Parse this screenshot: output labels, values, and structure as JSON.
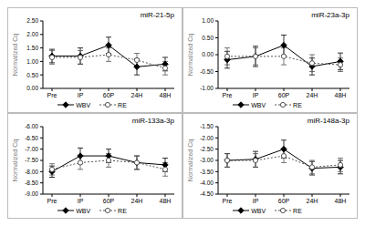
{
  "chart_data": [
    {
      "type": "line",
      "title": "miR-21-5p",
      "y_label": "Normalized Cq",
      "categories": [
        "Pre",
        "IP",
        "60P",
        "24H",
        "48H"
      ],
      "series": [
        {
          "name": "WBV",
          "color": "#000000",
          "marker": "diamond",
          "line_style": "solid",
          "values": [
            1.2,
            1.2,
            1.6,
            0.8,
            0.9
          ],
          "errors": [
            0.25,
            0.3,
            0.3,
            0.3,
            0.25
          ]
        },
        {
          "name": "RE",
          "color": "#555555",
          "marker": "circle",
          "line_style": "dotted",
          "values": [
            1.15,
            1.15,
            1.25,
            1.05,
            0.75
          ],
          "errors": [
            0.25,
            0.25,
            0.25,
            0.25,
            0.25
          ]
        }
      ],
      "ylim": [
        0,
        2.5
      ],
      "yticks": [
        {
          "value": 0,
          "label": "0.00"
        },
        {
          "value": 0.5,
          "label": "0.50"
        },
        {
          "value": 1,
          "label": "1.00"
        },
        {
          "value": 1.5,
          "label": "1.50"
        },
        {
          "value": 2,
          "label": "2.00"
        },
        {
          "value": 2.5,
          "label": "2.50"
        }
      ],
      "legend": "bottom"
    },
    {
      "type": "line",
      "title": "miR-23a-3p",
      "y_label": "Normalized Cq",
      "categories": [
        "Pre",
        "IP",
        "60P",
        "24H",
        "48H"
      ],
      "series": [
        {
          "name": "WBV",
          "color": "#000000",
          "marker": "diamond",
          "line_style": "solid",
          "values": [
            -0.15,
            -0.05,
            0.28,
            -0.35,
            -0.2
          ],
          "errors": [
            0.25,
            0.3,
            0.3,
            0.25,
            0.25
          ]
        },
        {
          "name": "RE",
          "color": "#555555",
          "marker": "circle",
          "line_style": "dotted",
          "values": [
            -0.05,
            -0.05,
            -0.05,
            -0.25,
            -0.3
          ],
          "errors": [
            0.25,
            0.25,
            0.25,
            0.25,
            0.2
          ]
        }
      ],
      "ylim": [
        -1,
        1
      ],
      "yticks": [
        {
          "value": -1,
          "label": "-1.00"
        },
        {
          "value": -0.5,
          "label": "-0.50"
        },
        {
          "value": 0,
          "label": "0.00"
        },
        {
          "value": 0.5,
          "label": "0.50"
        },
        {
          "value": 1,
          "label": "1.00"
        }
      ],
      "legend": "bottom"
    },
    {
      "type": "line",
      "title": "miR-133a-3p",
      "y_label": "Normalized Cq",
      "categories": [
        "Pre",
        "IP",
        "60P",
        "24H",
        "48H"
      ],
      "series": [
        {
          "name": "WBV",
          "color": "#000000",
          "marker": "diamond",
          "line_style": "solid",
          "values": [
            -8.0,
            -7.3,
            -7.3,
            -7.6,
            -7.7
          ],
          "errors": [
            0.25,
            0.35,
            0.3,
            0.3,
            0.3
          ]
        },
        {
          "name": "RE",
          "color": "#555555",
          "marker": "circle",
          "line_style": "dotted",
          "values": [
            -7.9,
            -7.6,
            -7.5,
            -7.6,
            -7.9
          ],
          "errors": [
            0.25,
            0.3,
            0.3,
            0.3,
            0.3
          ]
        }
      ],
      "ylim": [
        -9,
        -6
      ],
      "yticks": [
        {
          "value": -9,
          "label": "-9.00"
        },
        {
          "value": -8.5,
          "label": "-8.50"
        },
        {
          "value": -8,
          "label": "-8.00"
        },
        {
          "value": -7.5,
          "label": "-7.50"
        },
        {
          "value": -7,
          "label": "-7.00"
        },
        {
          "value": -6.5,
          "label": "-6.50"
        },
        {
          "value": -6,
          "label": "-6.00"
        }
      ],
      "legend": "bottom"
    },
    {
      "type": "line",
      "title": "miR-148a-3p",
      "y_label": "Normalized Cq",
      "categories": [
        "Pre",
        "IP",
        "60P",
        "24H",
        "48H"
      ],
      "series": [
        {
          "name": "WBV",
          "color": "#000000",
          "marker": "diamond",
          "line_style": "solid",
          "values": [
            -3.0,
            -2.95,
            -2.5,
            -3.35,
            -3.3
          ],
          "errors": [
            0.3,
            0.35,
            0.4,
            0.3,
            0.3
          ]
        },
        {
          "name": "RE",
          "color": "#555555",
          "marker": "circle",
          "line_style": "dotted",
          "values": [
            -3.0,
            -3.0,
            -2.8,
            -3.3,
            -3.2
          ],
          "errors": [
            0.3,
            0.3,
            0.3,
            0.3,
            0.3
          ]
        }
      ],
      "ylim": [
        -4.5,
        -1.5
      ],
      "yticks": [
        {
          "value": -4.5,
          "label": "-4.50"
        },
        {
          "value": -4,
          "label": "-4.00"
        },
        {
          "value": -3.5,
          "label": "-3.50"
        },
        {
          "value": -3,
          "label": "-3.00"
        },
        {
          "value": -2.5,
          "label": "-2.50"
        },
        {
          "value": -2,
          "label": "-2.00"
        },
        {
          "value": -1.5,
          "label": "-1.50"
        }
      ],
      "legend": "bottom"
    }
  ]
}
